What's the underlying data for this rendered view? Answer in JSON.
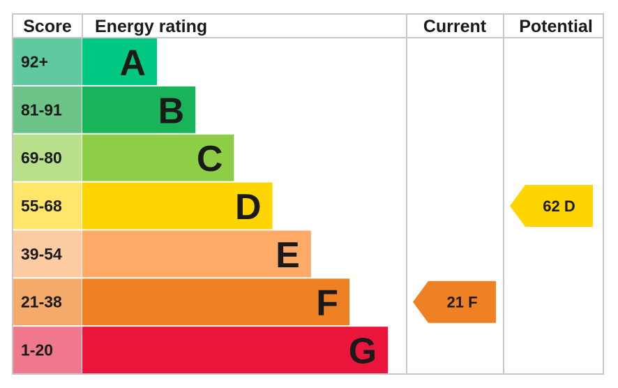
{
  "chart_data": {
    "type": "bar",
    "headers": {
      "score": "Score",
      "rating": "Energy rating",
      "current": "Current",
      "potential": "Potential"
    },
    "bands": [
      {
        "letter": "A",
        "range": "92+",
        "min": 92,
        "max": 100,
        "color": "#00c781",
        "score_bg": "#5fc9a0"
      },
      {
        "letter": "B",
        "range": "81-91",
        "min": 81,
        "max": 91,
        "color": "#19b459",
        "score_bg": "#6dc488"
      },
      {
        "letter": "C",
        "range": "69-80",
        "min": 69,
        "max": 80,
        "color": "#8dce46",
        "score_bg": "#b8e08a"
      },
      {
        "letter": "D",
        "range": "55-68",
        "min": 55,
        "max": 68,
        "color": "#ffd500",
        "score_bg": "#ffe56a"
      },
      {
        "letter": "E",
        "range": "39-54",
        "min": 39,
        "max": 54,
        "color": "#fcaa65",
        "score_bg": "#fdcca3"
      },
      {
        "letter": "F",
        "range": "21-38",
        "min": 21,
        "max": 38,
        "color": "#ef8023",
        "score_bg": "#f5a96b"
      },
      {
        "letter": "G",
        "range": "1-20",
        "min": 1,
        "max": 20,
        "color": "#e9153b",
        "score_bg": "#f0788c"
      }
    ],
    "current": {
      "value": 21,
      "band": "F",
      "label": "21 F",
      "color": "#ef8023"
    },
    "potential": {
      "value": 62,
      "band": "D",
      "label": "62 D",
      "color": "#ffd500"
    }
  }
}
